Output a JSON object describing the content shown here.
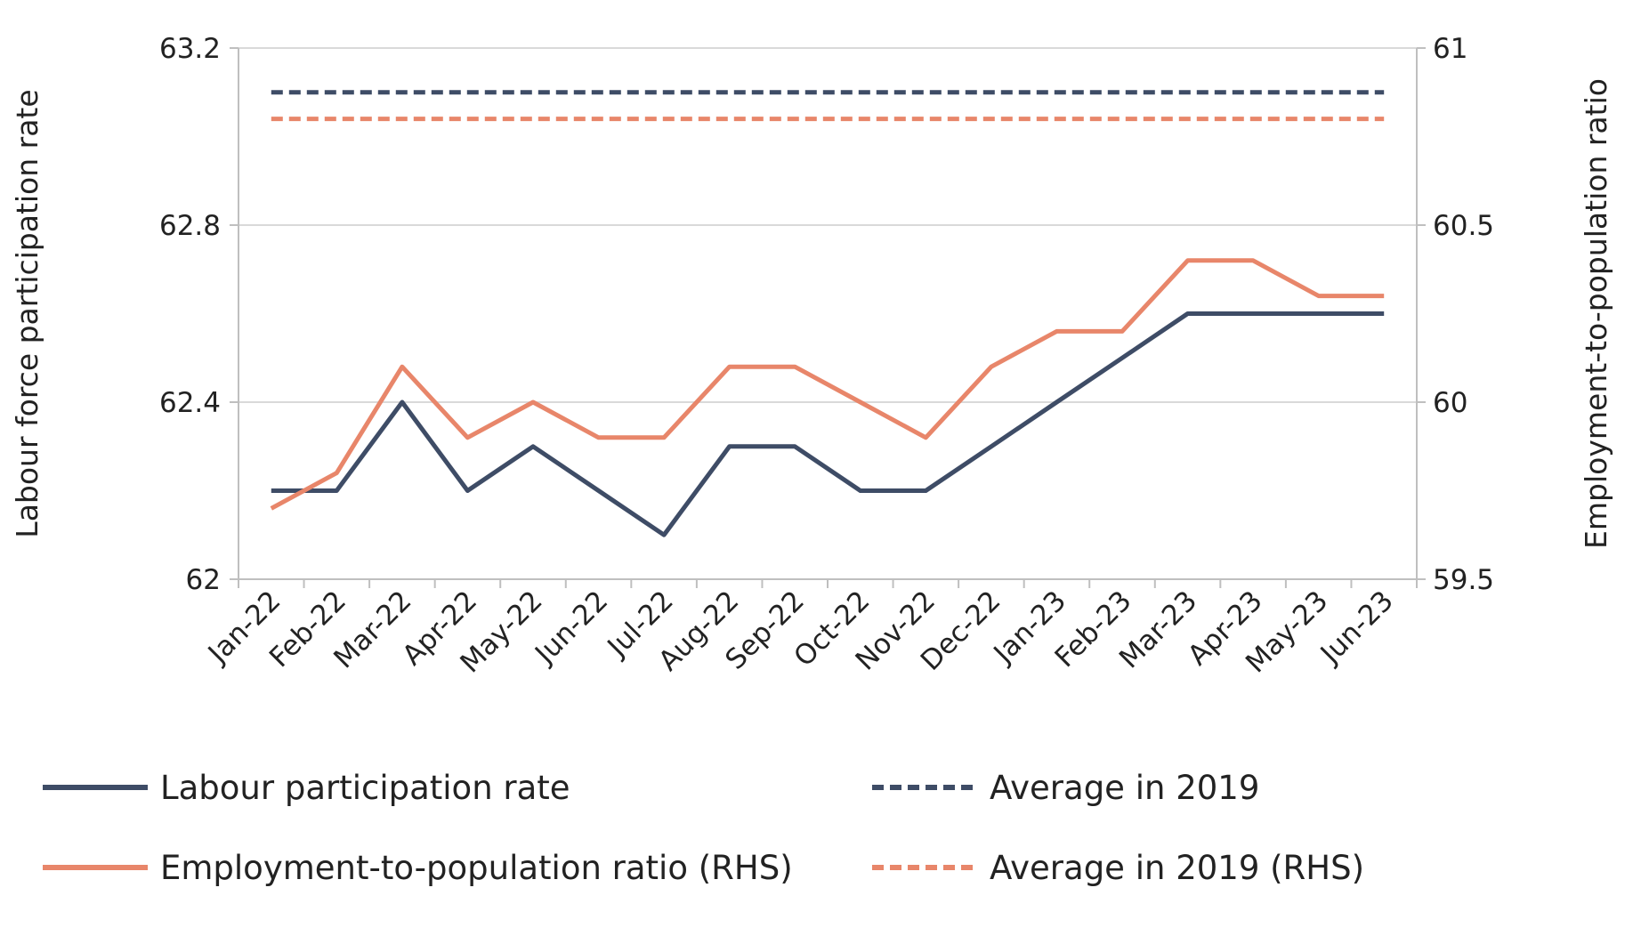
{
  "chart_data": {
    "type": "line",
    "title": "",
    "x": [
      "Jan-22",
      "Feb-22",
      "Mar-22",
      "Apr-22",
      "May-22",
      "Jun-22",
      "Jul-22",
      "Aug-22",
      "Sep-22",
      "Oct-22",
      "Nov-22",
      "Dec-22",
      "Jan-23",
      "Feb-23",
      "Mar-23",
      "Apr-23",
      "May-23",
      "Jun-23"
    ],
    "y_left": {
      "label": "Labour force participation rate",
      "range": [
        62,
        63.2
      ],
      "ticks": [
        "62",
        "62.4",
        "62.8",
        "63.2"
      ],
      "tick_values": [
        62,
        62.4,
        62.8,
        63.2
      ]
    },
    "y_right": {
      "label": "Employment-to-population ratio",
      "range": [
        59.5,
        61
      ],
      "ticks": [
        "59.5",
        "60",
        "60.5",
        "61"
      ],
      "tick_values": [
        59.5,
        60,
        60.5,
        61
      ]
    },
    "grid": true,
    "legend_placement": "bottom",
    "series": [
      {
        "name": "Labour participation rate",
        "axis": "left",
        "style": "solid",
        "color": "#3e4c66",
        "values": [
          62.2,
          62.2,
          62.4,
          62.2,
          62.3,
          62.2,
          62.1,
          62.3,
          62.3,
          62.2,
          62.2,
          62.3,
          62.4,
          62.5,
          62.6,
          62.6,
          62.6,
          62.6
        ]
      },
      {
        "name": "Average in 2019",
        "axis": "left",
        "style": "dashed",
        "color": "#3e4c66",
        "values": [
          63.1,
          63.1,
          63.1,
          63.1,
          63.1,
          63.1,
          63.1,
          63.1,
          63.1,
          63.1,
          63.1,
          63.1,
          63.1,
          63.1,
          63.1,
          63.1,
          63.1,
          63.1
        ]
      },
      {
        "name": "Employment-to-population ratio (RHS)",
        "axis": "right",
        "style": "solid",
        "color": "#e8866a",
        "values": [
          59.7,
          59.8,
          60.1,
          59.9,
          60.0,
          59.9,
          59.9,
          60.1,
          60.1,
          60.0,
          59.9,
          60.1,
          60.2,
          60.2,
          60.4,
          60.4,
          60.3,
          60.3
        ]
      },
      {
        "name": "Average in 2019 (RHS)",
        "axis": "right",
        "style": "dashed",
        "color": "#e8866a",
        "values": [
          60.8,
          60.8,
          60.8,
          60.8,
          60.8,
          60.8,
          60.8,
          60.8,
          60.8,
          60.8,
          60.8,
          60.8,
          60.8,
          60.8,
          60.8,
          60.8,
          60.8,
          60.8
        ]
      }
    ],
    "legend": [
      {
        "label": "Labour participation rate",
        "series": 0
      },
      {
        "label": "Average in 2019",
        "series": 1
      },
      {
        "label": "Employment-to-population ratio (RHS)",
        "series": 2
      },
      {
        "label": "Average in 2019 (RHS)",
        "series": 3
      }
    ]
  }
}
